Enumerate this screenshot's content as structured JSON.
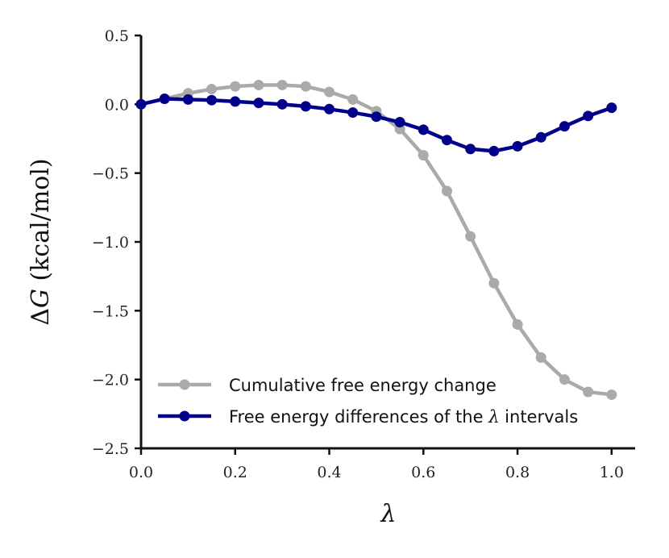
{
  "chart_data": {
    "type": "line",
    "title": "",
    "xlabel": "λ",
    "ylabel": {
      "delta": "Δ",
      "symbol": "G",
      "units": " (kcal/mol)"
    },
    "xlim": [
      0.0,
      1.05
    ],
    "ylim": [
      -2.5,
      0.5
    ],
    "xticks": [
      0.0,
      0.2,
      0.4,
      0.6,
      0.8,
      1.0
    ],
    "xtick_labels": [
      "0.0",
      "0.2",
      "0.4",
      "0.6",
      "0.8",
      "1.0"
    ],
    "yticks": [
      0.5,
      0.0,
      -0.5,
      -1.0,
      -1.5,
      -2.0,
      -2.5
    ],
    "ytick_labels": [
      "0.5",
      "0.0",
      "−0.5",
      "−1.0",
      "−1.5",
      "−2.0",
      "−2.5"
    ],
    "grid": false,
    "legend_position": "lower-left",
    "series": [
      {
        "name": "Cumulative free energy change",
        "color": "#aaaaaa",
        "x": [
          0.0,
          0.05,
          0.1,
          0.15,
          0.2,
          0.25,
          0.3,
          0.35,
          0.4,
          0.45,
          0.5,
          0.55,
          0.6,
          0.65,
          0.7,
          0.75,
          0.8,
          0.85,
          0.9,
          0.95,
          1.0
        ],
        "y": [
          0.0,
          0.04,
          0.08,
          0.11,
          0.13,
          0.14,
          0.14,
          0.13,
          0.09,
          0.035,
          -0.05,
          -0.18,
          -0.37,
          -0.63,
          -0.96,
          -1.3,
          -1.6,
          -1.84,
          -2.0,
          -2.09,
          -2.11
        ]
      },
      {
        "name": "Free energy differences of the ",
        "name_symbol": "λ",
        "name_suffix": " intervals",
        "color": "#00008b",
        "x": [
          0.0,
          0.05,
          0.1,
          0.15,
          0.2,
          0.25,
          0.3,
          0.35,
          0.4,
          0.45,
          0.5,
          0.55,
          0.6,
          0.65,
          0.7,
          0.75,
          0.8,
          0.85,
          0.9,
          0.95,
          1.0
        ],
        "y": [
          0.0,
          0.04,
          0.035,
          0.03,
          0.02,
          0.01,
          0.0,
          -0.015,
          -0.035,
          -0.06,
          -0.09,
          -0.13,
          -0.185,
          -0.26,
          -0.325,
          -0.34,
          -0.305,
          -0.24,
          -0.16,
          -0.085,
          -0.025
        ]
      }
    ]
  }
}
